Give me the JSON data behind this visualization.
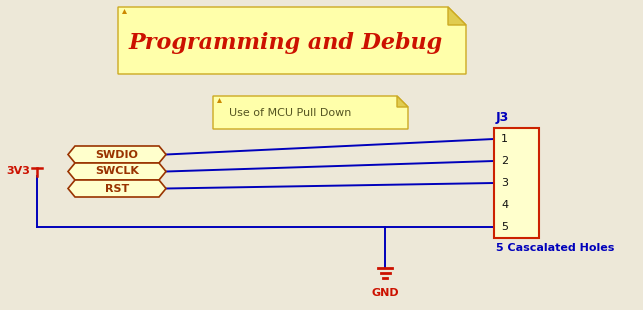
{
  "bg_color": "#ede8d8",
  "title_text": "Programming and Debug",
  "title_color": "#cc1100",
  "title_bg": "#ffffaa",
  "note_text": "Use of MCU Pull Down",
  "note_bg": "#ffffaa",
  "note_color": "#555522",
  "signals": [
    "SWDIO",
    "SWCLK",
    "RST"
  ],
  "signal_color": "#993300",
  "signal_bg": "#ffffcc",
  "wire_color": "#0000bb",
  "connector_label": "J3",
  "connector_pins": [
    "1",
    "2",
    "3",
    "4",
    "5"
  ],
  "connector_bg": "#ffffcc",
  "connector_border": "#cc2200",
  "connector_label_color": "#0000bb",
  "cascalated_text": "5 Cascalated Holes",
  "cascalated_color": "#0000bb",
  "vcc_label": "3V3",
  "vcc_color": "#cc1100",
  "gnd_label": "GND",
  "gnd_color": "#cc1100",
  "note_border": "#bbaa33",
  "fold_color": "#e0cc50"
}
